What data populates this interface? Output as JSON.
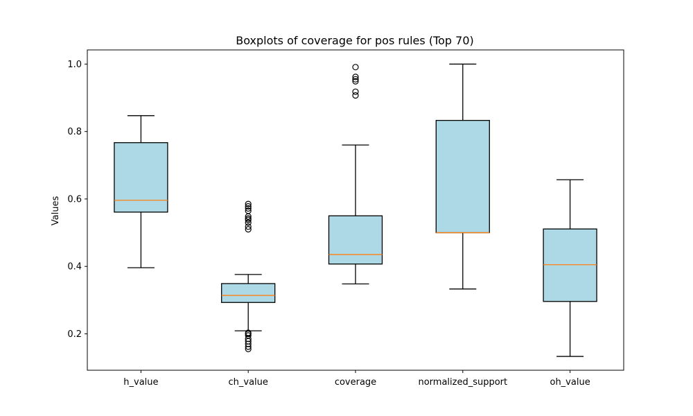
{
  "chart_data": {
    "type": "boxplot",
    "title": "Boxplots of coverage for pos rules (Top 70)",
    "xlabel": "",
    "ylabel": "Values",
    "ylim": [
      0.092,
      1.042
    ],
    "yticks": [
      0.2,
      0.4,
      0.6,
      0.8,
      1.0
    ],
    "ytick_labels": [
      "0.2",
      "0.4",
      "0.6",
      "0.8",
      "1.0"
    ],
    "grid": false,
    "box_color": "#add8e6",
    "median_color": "#ff7f0e",
    "categories": [
      "h_value",
      "ch_value",
      "coverage",
      "normalized_support",
      "oh_value"
    ],
    "boxes": [
      {
        "name": "h_value",
        "whisker_low": 0.396,
        "q1": 0.561,
        "median": 0.596,
        "q3": 0.767,
        "whisker_high": 0.847,
        "outliers": []
      },
      {
        "name": "ch_value",
        "whisker_low": 0.209,
        "q1": 0.293,
        "median": 0.314,
        "q3": 0.349,
        "whisker_high": 0.376,
        "outliers": [
          0.155,
          0.162,
          0.17,
          0.178,
          0.185,
          0.195,
          0.2,
          0.203,
          0.51,
          0.518,
          0.53,
          0.538,
          0.542,
          0.548,
          0.565,
          0.572,
          0.578,
          0.585
        ]
      },
      {
        "name": "coverage",
        "whisker_low": 0.348,
        "q1": 0.407,
        "median": 0.435,
        "q3": 0.55,
        "whisker_high": 0.76,
        "outliers": [
          0.907,
          0.918,
          0.949,
          0.955,
          0.962,
          0.991
        ]
      },
      {
        "name": "normalized_support",
        "whisker_low": 0.333,
        "q1": 0.5,
        "median": 0.5,
        "q3": 0.833,
        "whisker_high": 1.0,
        "outliers": []
      },
      {
        "name": "oh_value",
        "whisker_low": 0.133,
        "q1": 0.296,
        "median": 0.405,
        "q3": 0.511,
        "whisker_high": 0.657,
        "outliers": []
      }
    ]
  }
}
